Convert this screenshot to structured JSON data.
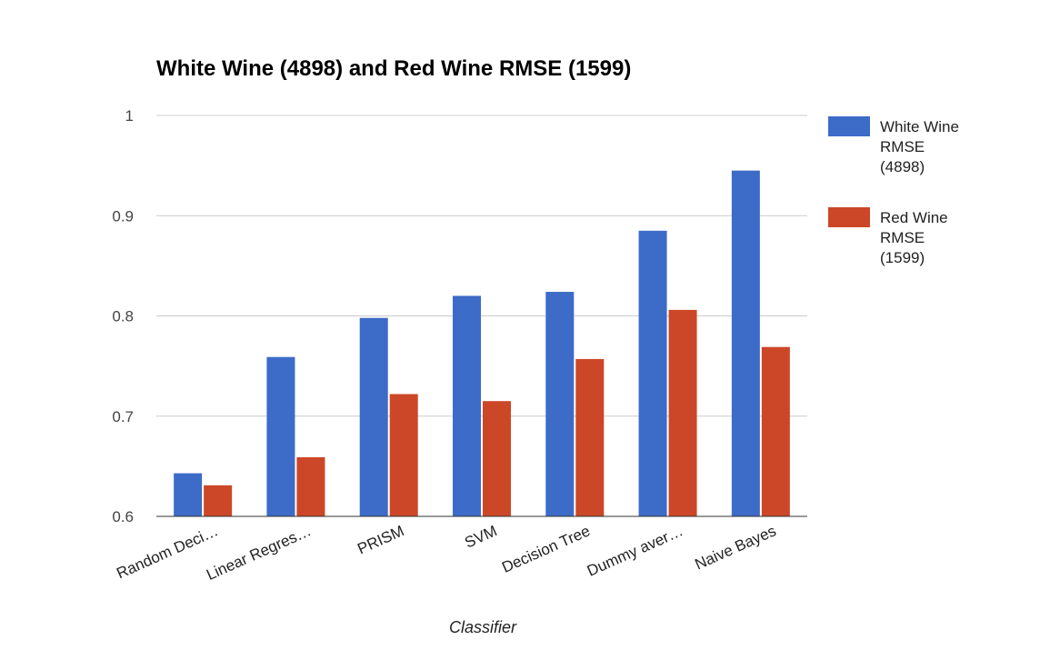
{
  "chart_data": {
    "type": "bar",
    "title": "White Wine (4898) and Red Wine RMSE (1599)",
    "xlabel": "Classifier",
    "ylabel": "",
    "ylim": [
      0.6,
      1.0
    ],
    "yticks": [
      "0.6",
      "0.7",
      "0.8",
      "0.9",
      "1"
    ],
    "categories": [
      "Random Deci…",
      "Linear Regres…",
      "PRISM",
      "SVM",
      "Decision Tree",
      "Dummy aver…",
      "Naive Bayes"
    ],
    "series": [
      {
        "name": "White Wine RMSE (4898)",
        "legend_lines": [
          "White Wine",
          "RMSE",
          "(4898)"
        ],
        "color": "#3d6bc8",
        "values": [
          0.643,
          0.759,
          0.798,
          0.82,
          0.824,
          0.885,
          0.945
        ]
      },
      {
        "name": "Red Wine RMSE (1599)",
        "legend_lines": [
          "Red Wine",
          "RMSE",
          "(1599)"
        ],
        "color": "#cc4727",
        "values": [
          0.631,
          0.659,
          0.722,
          0.715,
          0.757,
          0.806,
          0.769
        ]
      }
    ],
    "grid": true,
    "legend_position": "right"
  }
}
